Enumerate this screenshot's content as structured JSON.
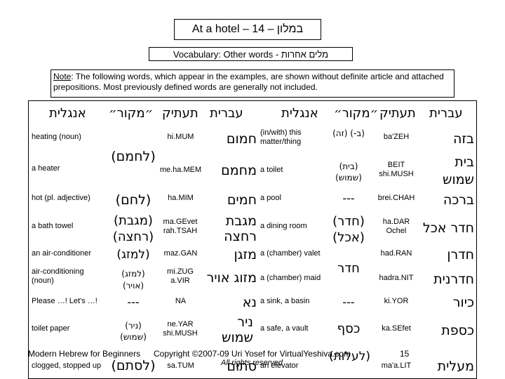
{
  "title": "At a hotel – 14 – במלון",
  "vocab_heading": "Vocabulary: Other words - מלים אחרות",
  "note": {
    "label": "Note",
    "text": ": The following words, which appear in the examples, are shown without definite article and attached prepositions.  Most previously defined words are generally not included."
  },
  "headers": {
    "hebrew": "עברית",
    "translit": "תעתיק",
    "source": "״מקור״",
    "english": "אנגלית"
  },
  "left_rows": [
    {
      "english": "heating (noun)",
      "translit": "hi.MUM",
      "hebrew": "חמום",
      "source": ""
    },
    {
      "english": "a heater",
      "translit": "me.ha.MEM",
      "hebrew": "מחמם",
      "source": "(לחמם)"
    },
    {
      "english": "hot (pl. adjective)",
      "translit": "ha.MIM",
      "hebrew": "חמים",
      "source": "(לחם)"
    },
    {
      "english": "a bath towel",
      "translit": "ma.GEvet rah.TSAH",
      "hebrew": "מגבת רחצה",
      "source": "(מגבת) (רחצה)"
    },
    {
      "english": "an air-conditioner",
      "translit": "maz.GAN",
      "hebrew": "מזגן",
      "source": "(למזג)"
    },
    {
      "english": "air-conditioning (noun)",
      "translit": "mi.ZUG a.VIR",
      "hebrew": "מזוג אויר",
      "source": "(למזג) (אויר)"
    },
    {
      "english": "Please …! Let's …!",
      "translit": "NA",
      "hebrew": "נא",
      "source": "---"
    },
    {
      "english": "toilet paper",
      "translit": "ne.YAR shi.MUSH",
      "hebrew": "ניר שמוש",
      "source": "(ניר) (שמוש)"
    },
    {
      "english": "clogged, stopped up",
      "translit": "sa.TUM",
      "hebrew": "סתום",
      "source": "(לסתם)"
    }
  ],
  "right_rows": [
    {
      "english": "(in/with) this matter/thing",
      "translit": "ba'ZEH",
      "hebrew": "בזה",
      "source": "(ב-) (זה)"
    },
    {
      "english": "a toilet",
      "translit": "BEIT shi.MUSH",
      "hebrew": "בית שמוש",
      "source": "(בית) (שמוש)"
    },
    {
      "english": "a pool",
      "translit": "brei.CHAH",
      "hebrew": "ברכה",
      "source": "---"
    },
    {
      "english": "a dining room",
      "translit": "ha.DAR Ochel",
      "hebrew": "חדר אכל",
      "source": "(חדר) (אכל)"
    },
    {
      "english": "a (chamber) valet",
      "translit": "had.RAN",
      "hebrew": "חדרן",
      "source": "חדר"
    },
    {
      "english": "a (chamber) maid",
      "translit": "hadra.NIT",
      "hebrew": "חדרנית",
      "source": ""
    },
    {
      "english": "a sink, a basin",
      "translit": "ki.YOR",
      "hebrew": "כיור",
      "source": "---"
    },
    {
      "english": "a safe, a vault",
      "translit": "ka.SEfet",
      "hebrew": "כספת",
      "source": "כסף"
    },
    {
      "english": "an elevator",
      "translit": "ma'a.LIT",
      "hebrew": "מעלית",
      "source": "(לעלות)"
    }
  ],
  "footer": {
    "left": "Modern Hebrew for Beginners",
    "center": "Copyright ©2007-09 Uri Yosef for VirtualYeshiva.com",
    "rights": "All rights reserved",
    "page": "15"
  }
}
